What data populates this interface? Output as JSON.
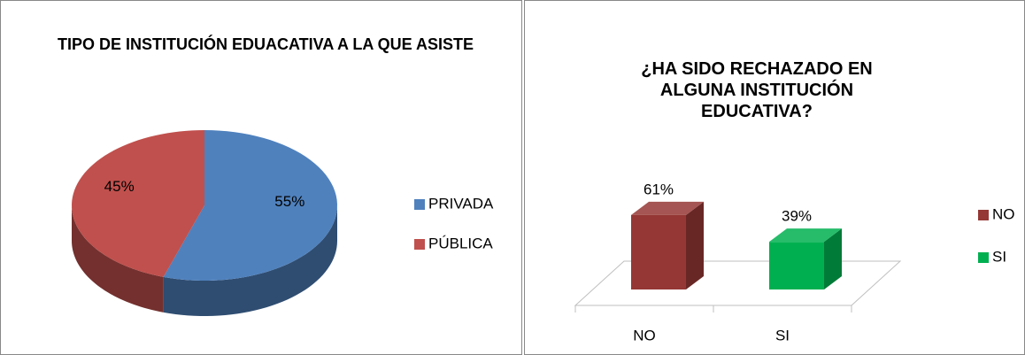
{
  "chart_data": [
    {
      "type": "pie",
      "title": "TIPO DE INSTITUCIÓN EDUACATIVA A LA QUE ASISTE",
      "categories": [
        "PRIVADA",
        "PÚBLICA"
      ],
      "values": [
        55,
        45
      ],
      "value_labels": [
        "55%",
        "45%"
      ],
      "colors": [
        "#4f81bd",
        "#c0504d"
      ],
      "legend": "right"
    },
    {
      "type": "bar3d",
      "title": "¿HA SIDO RECHAZADO EN ALGUNA INSTITUCIÓN EDUCATIVA?",
      "categories": [
        "NO",
        "SI"
      ],
      "values": [
        61,
        39
      ],
      "value_labels": [
        "61%",
        "39%"
      ],
      "colors": [
        "#953735",
        "#00b050"
      ],
      "legend": "right"
    }
  ]
}
